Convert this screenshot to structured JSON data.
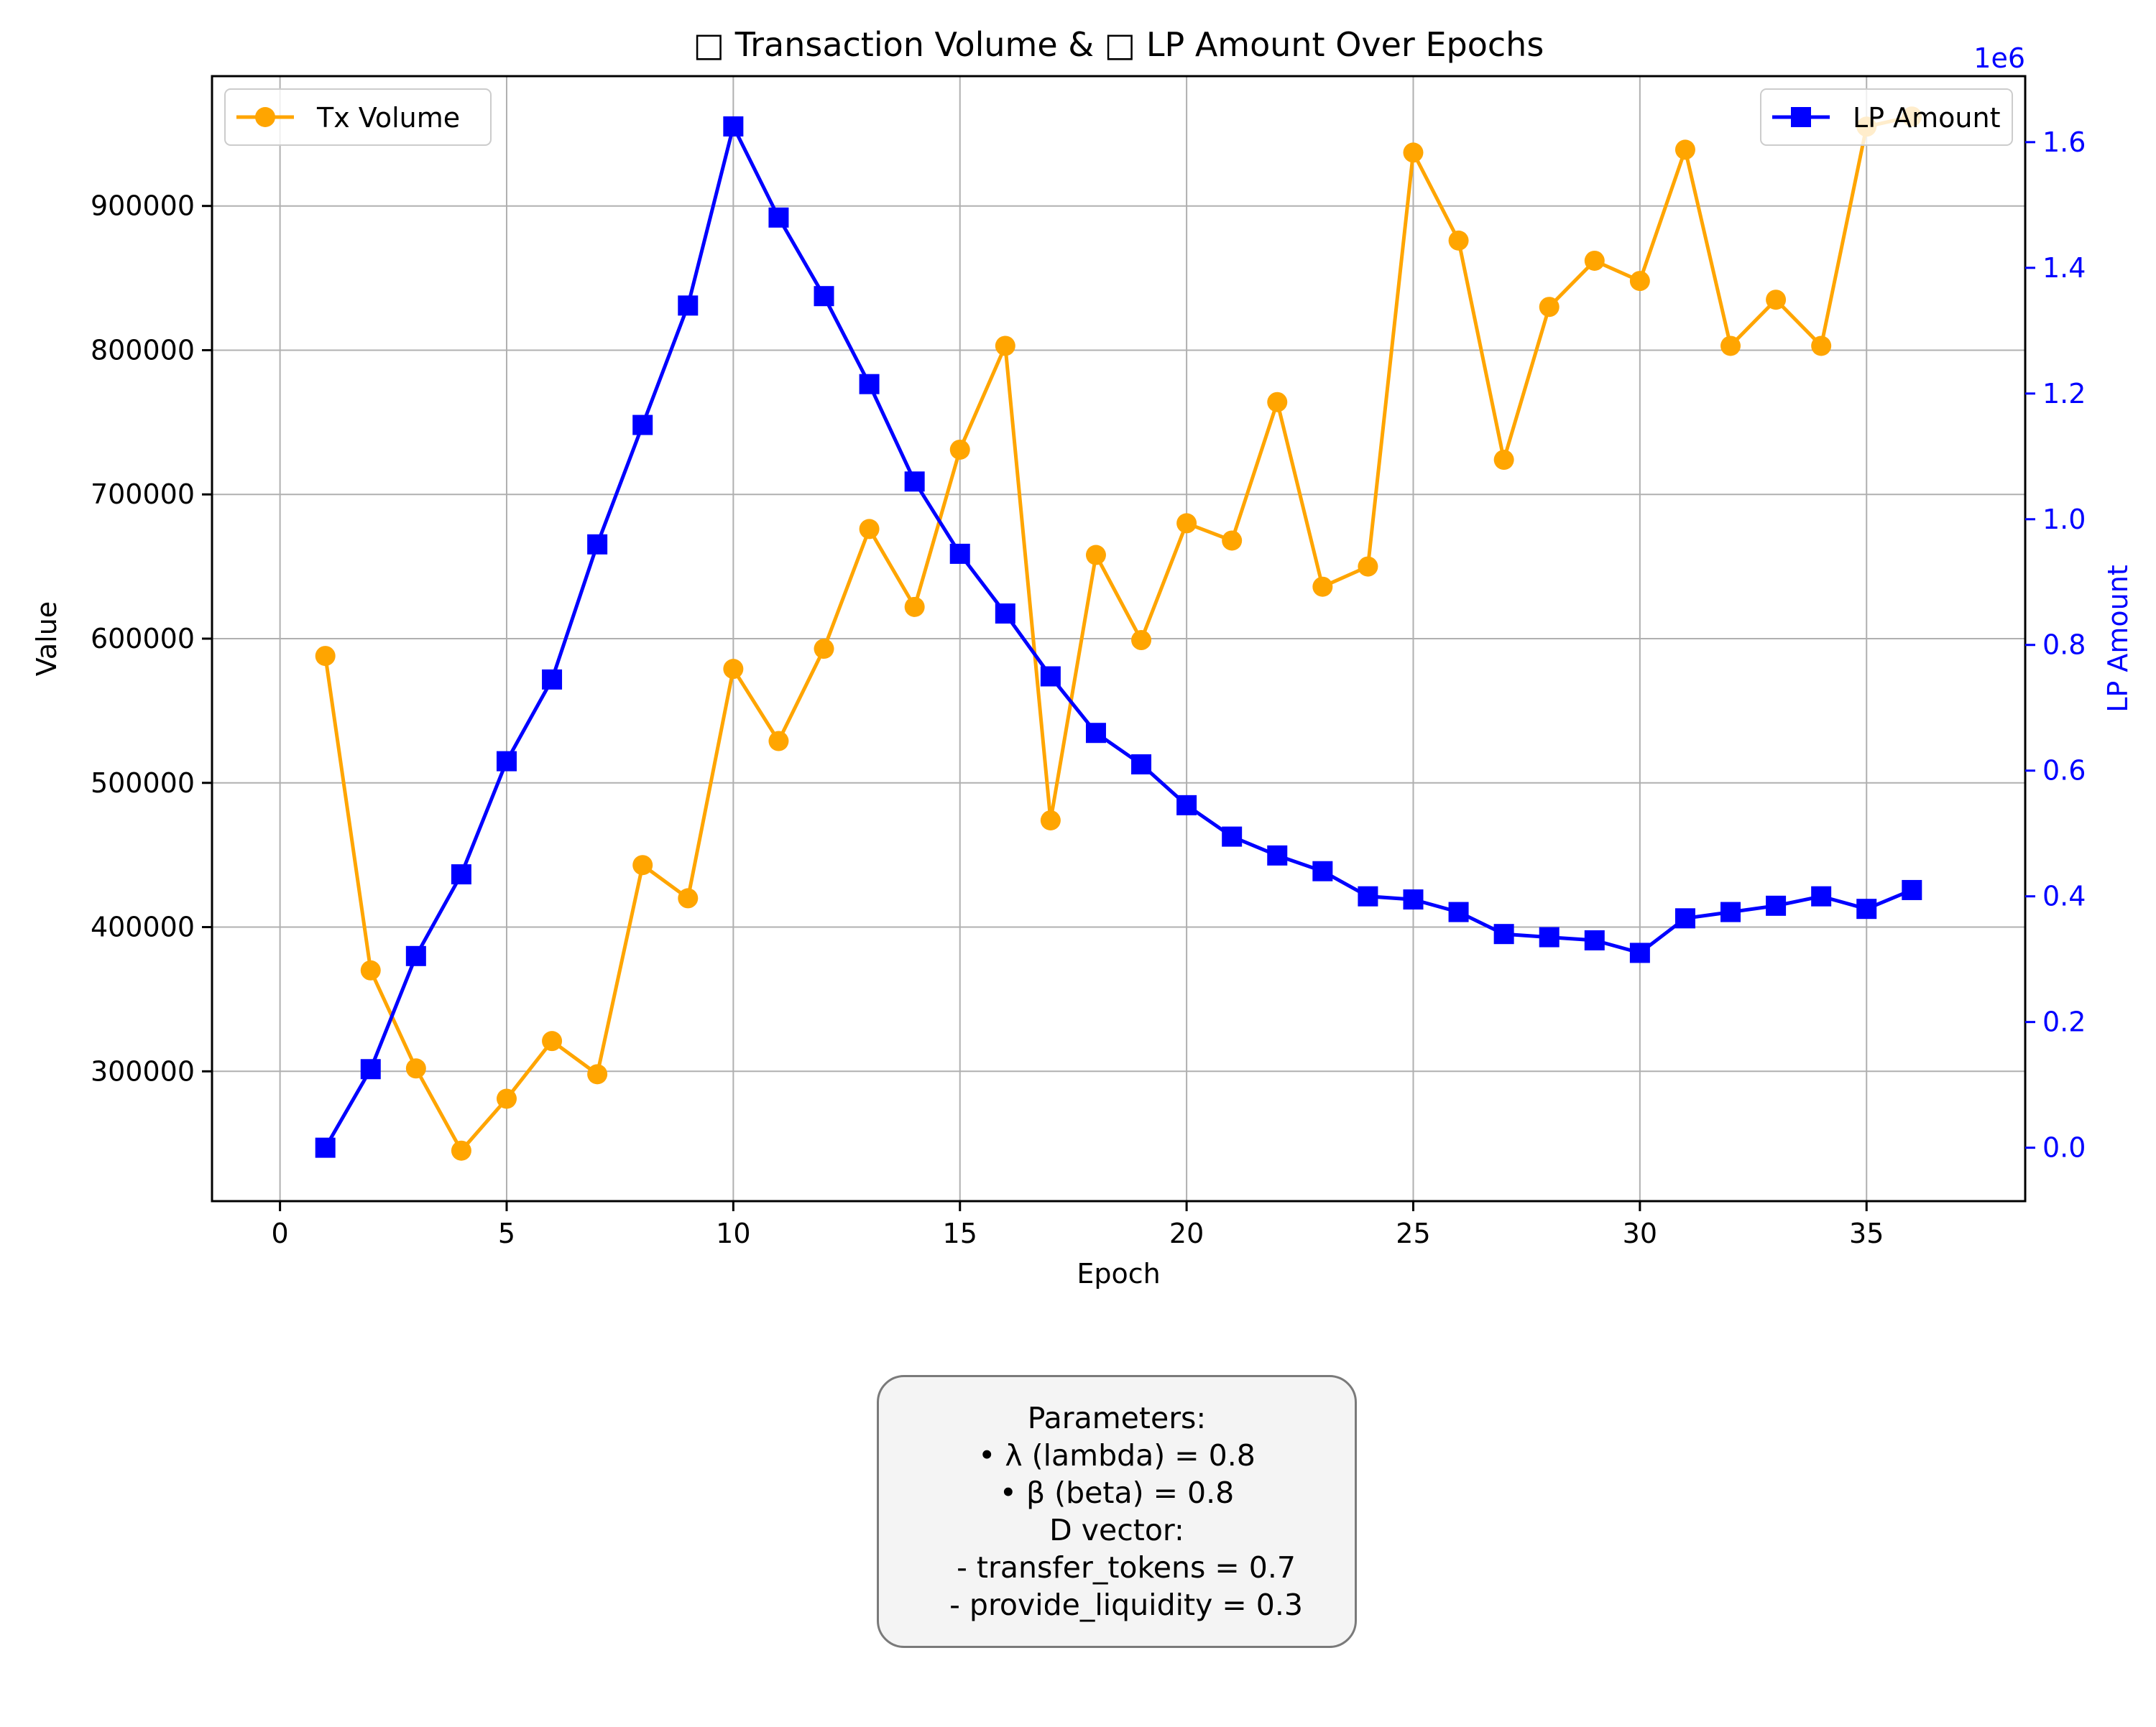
{
  "chart_data": {
    "type": "line",
    "title": "□ Transaction Volume & □ LP Amount Over Epochs",
    "xlabel": "Epoch",
    "ylabel_left": "Value",
    "ylabel_right": "LP Amount",
    "right_axis_offset_label": "1e6",
    "xlim": [
      -1.5,
      38.5
    ],
    "ylim_left": [
      210000,
      990000
    ],
    "ylim_right": [
      -0.085,
      1.705
    ],
    "x_ticks": [
      0,
      5,
      10,
      15,
      20,
      25,
      30,
      35
    ],
    "y_ticks_left": [
      300000,
      400000,
      500000,
      600000,
      700000,
      800000,
      900000
    ],
    "y_ticks_right": [
      0.0,
      0.2,
      0.4,
      0.6,
      0.8,
      1.0,
      1.2,
      1.4,
      1.6
    ],
    "grid": true,
    "x": [
      1,
      2,
      3,
      4,
      5,
      6,
      7,
      8,
      9,
      10,
      11,
      12,
      13,
      14,
      15,
      16,
      17,
      18,
      19,
      20,
      21,
      22,
      23,
      24,
      25,
      26,
      27,
      28,
      29,
      30,
      31,
      32,
      33,
      34,
      35,
      36
    ],
    "series": [
      {
        "name": "Tx Volume",
        "axis": "left",
        "color": "#FFA500",
        "marker": "circle",
        "legend_position": "top-left",
        "values": [
          588000,
          370000,
          302000,
          245000,
          281000,
          321000,
          298000,
          443000,
          420000,
          579000,
          529000,
          593000,
          676000,
          622000,
          731000,
          803000,
          474000,
          658000,
          599000,
          680000,
          668000,
          764000,
          636000,
          650000,
          937000,
          876000,
          724000,
          830000,
          862000,
          848000,
          939000,
          803000,
          835000,
          803000,
          955000,
          962000
        ]
      },
      {
        "name": "LP Amount",
        "axis": "right",
        "color": "#0000FF",
        "marker": "square",
        "legend_position": "top-right",
        "values": [
          0.0,
          0.125,
          0.305,
          0.435,
          0.615,
          0.745,
          0.96,
          1.15,
          1.34,
          1.625,
          1.48,
          1.355,
          1.215,
          1.06,
          0.945,
          0.85,
          0.75,
          0.66,
          0.61,
          0.545,
          0.495,
          0.465,
          0.44,
          0.4,
          0.395,
          0.375,
          0.34,
          0.335,
          0.33,
          0.31,
          0.365,
          0.375,
          0.385,
          0.4,
          0.38,
          0.41
        ]
      }
    ]
  },
  "parameters": {
    "lines": [
      "Parameters:",
      "• λ (lambda) = 0.8",
      "• β (beta) = 0.8",
      "D vector:",
      "  - transfer_tokens = 0.7",
      "  - provide_liquidity = 0.3"
    ]
  }
}
